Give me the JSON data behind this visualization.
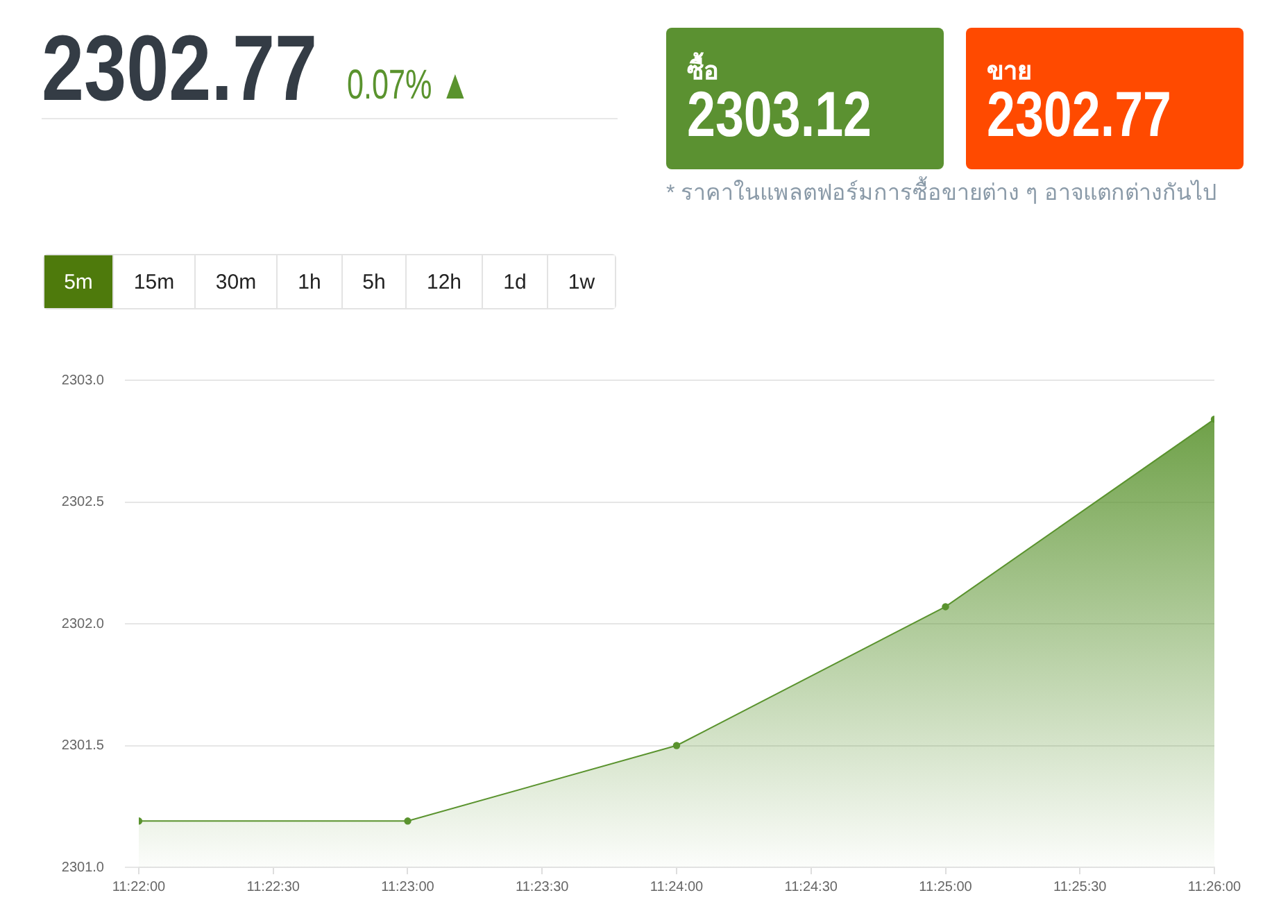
{
  "chart_data": {
    "type": "area",
    "title": "2302.77",
    "subtitle": "0.07% ▲",
    "annotations": [
      "ซื้อ",
      "2303.12",
      "ขาย",
      "2302.77",
      "* ราคาในแพลตฟอร์มการซื้อขายต่าง ๆ อาจแตกต่างกันไป",
      "5m",
      "15m",
      "30m",
      "1h",
      "5h",
      "12h",
      "1d",
      "1w"
    ],
    "x": [
      11.366667,
      11.383333,
      11.4,
      11.416667,
      11.433333
    ],
    "series": [
      {
        "color": "#5a932e",
        "values": [
          2301.19,
          2301.19,
          2301.5,
          2302.07,
          2302.84
        ]
      }
    ],
    "xlim": [
      11.366667,
      11.433333
    ],
    "xticks": [
      {
        "value": 11.366667,
        "label": "11:22:00"
      },
      {
        "value": 11.375,
        "label": "11:22:30"
      },
      {
        "value": 11.383333,
        "label": "11:23:00"
      },
      {
        "value": 11.391667,
        "label": "11:23:30"
      },
      {
        "value": 11.4,
        "label": "11:24:00"
      },
      {
        "value": 11.408333,
        "label": "11:24:30"
      },
      {
        "value": 11.416667,
        "label": "11:25:00"
      },
      {
        "value": 11.425,
        "label": "11:25:30"
      },
      {
        "value": 11.433333,
        "label": "11:26:00"
      }
    ],
    "ylim": [
      2301,
      2303
    ],
    "yticks": [
      {
        "value": 2301,
        "label": "2301.0"
      },
      {
        "value": 2301.5,
        "label": "2301.5"
      },
      {
        "value": 2302,
        "label": "2302.0"
      },
      {
        "value": 2302.5,
        "label": "2302.5"
      },
      {
        "value": 2303,
        "label": "2303.0"
      }
    ],
    "grid": "y",
    "marker": "circle"
  }
}
